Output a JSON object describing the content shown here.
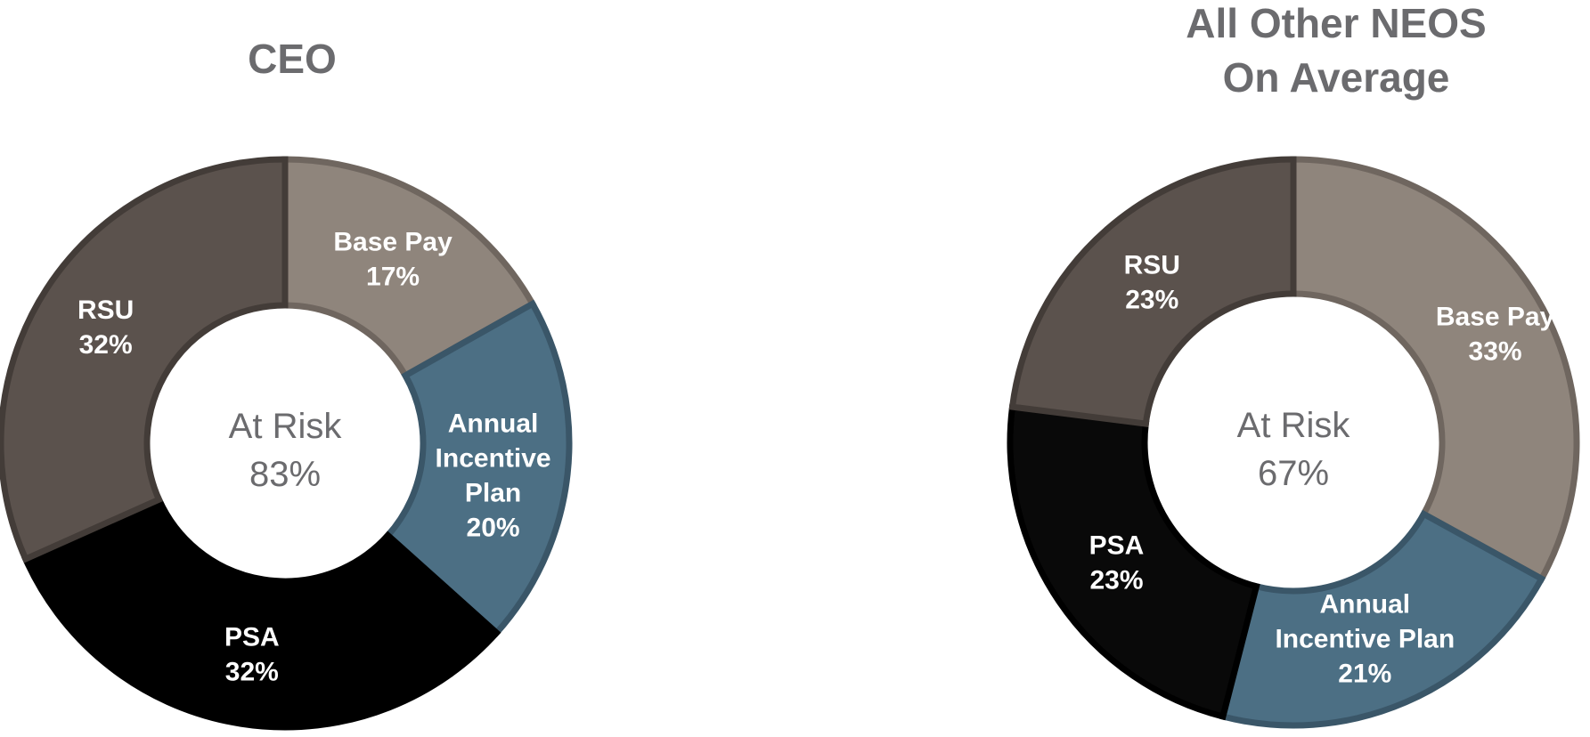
{
  "chart_data": [
    {
      "type": "pie",
      "title": "CEO",
      "title_lines": [
        "CEO"
      ],
      "center_label": "At Risk",
      "center_value": "83%",
      "slices": [
        {
          "key": "base",
          "label_lines": [
            "Base Pay"
          ],
          "value": 17,
          "value_text": "17%",
          "color": "#8f857c",
          "border": "#6f665f"
        },
        {
          "key": "aip",
          "label_lines": [
            "Annual",
            "Incentive",
            "Plan"
          ],
          "value": 20,
          "value_text": "20%",
          "color": "#4c6f84",
          "border": "#3a5668"
        },
        {
          "key": "psa",
          "label_lines": [
            "PSA"
          ],
          "value": 32,
          "value_text": "32%",
          "color": "#000000",
          "border": "#000000"
        },
        {
          "key": "rsu",
          "label_lines": [
            "RSU"
          ],
          "value": 32,
          "value_text": "32%",
          "color": "#5b524d",
          "border": "#433c38"
        }
      ]
    },
    {
      "type": "pie",
      "title": "All Other NEOS On Average",
      "title_lines": [
        "All Other NEOS",
        "On Average"
      ],
      "center_label": "At Risk",
      "center_value": "67%",
      "slices": [
        {
          "key": "base",
          "label_lines": [
            "Base Pay"
          ],
          "value": 33,
          "value_text": "33%",
          "color": "#8f857c",
          "border": "#6f665f"
        },
        {
          "key": "aip",
          "label_lines": [
            "Annual",
            "Incentive Plan"
          ],
          "value": 21,
          "value_text": "21%",
          "color": "#4c6f84",
          "border": "#3a5668"
        },
        {
          "key": "psa",
          "label_lines": [
            "PSA"
          ],
          "value": 23,
          "value_text": "23%",
          "color": "#090909",
          "border": "#000000"
        },
        {
          "key": "rsu",
          "label_lines": [
            "RSU"
          ],
          "value": 23,
          "value_text": "23%",
          "color": "#5b524d",
          "border": "#433c38"
        }
      ]
    }
  ]
}
